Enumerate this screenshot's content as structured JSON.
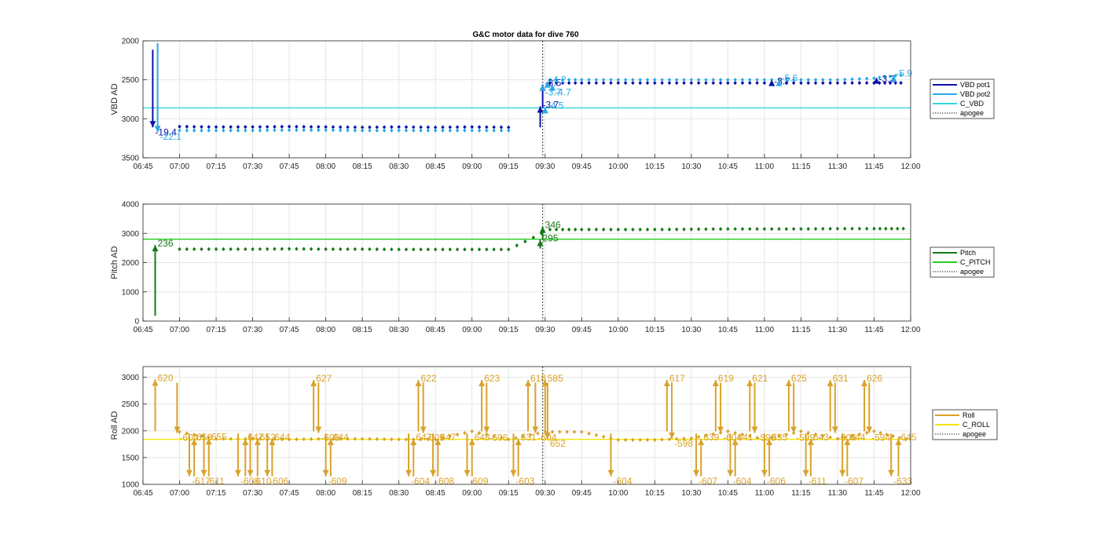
{
  "title": "G&C motor data for dive 760",
  "x_ticks": [
    "06:45",
    "07:00",
    "07:15",
    "07:30",
    "07:45",
    "08:00",
    "08:15",
    "08:30",
    "08:45",
    "09:00",
    "09:15",
    "09:30",
    "09:45",
    "10:00",
    "10:15",
    "10:30",
    "10:45",
    "11:00",
    "11:15",
    "11:30",
    "11:45",
    "12:00"
  ],
  "chart_data": [
    {
      "type": "scatter",
      "ylabel": "VBD AD",
      "reversed_y": true,
      "ylim": [
        2000,
        3500
      ],
      "yticks": [
        2000,
        2500,
        3000,
        3500
      ],
      "grid": true,
      "xlim": [
        "06:45",
        "12:00"
      ],
      "apogee": "09:29",
      "reference_lines": [
        {
          "name": "C_VBD",
          "y": 2860,
          "color": "#33d6dd"
        }
      ],
      "series": [
        {
          "name": "VBD pot1",
          "color": "#0a12a8",
          "x": [
            "07:00",
            "07:15",
            "07:30",
            "07:45",
            "08:00",
            "08:15",
            "08:30",
            "08:45",
            "09:00",
            "09:15",
            "09:32",
            "09:45",
            "10:00",
            "10:15",
            "10:30",
            "10:45",
            "11:00",
            "11:15",
            "11:30",
            "11:45",
            "11:56"
          ],
          "y": [
            3100,
            3105,
            3105,
            3100,
            3105,
            3110,
            3105,
            3110,
            3105,
            3110,
            2540,
            2540,
            2540,
            2540,
            2540,
            2540,
            2540,
            2540,
            2540,
            2540,
            2540
          ]
        },
        {
          "name": "VBD pot2",
          "color": "#2aa8e6",
          "x": [
            "07:00",
            "07:15",
            "07:30",
            "07:45",
            "08:00",
            "08:15",
            "08:30",
            "08:45",
            "09:00",
            "09:15",
            "09:32",
            "09:45",
            "10:00",
            "10:15",
            "10:30",
            "10:45",
            "11:00",
            "11:15",
            "11:30",
            "11:45",
            "11:56"
          ],
          "y": [
            3150,
            3150,
            3150,
            3145,
            3145,
            3150,
            3150,
            3150,
            3150,
            3150,
            2500,
            2500,
            2500,
            2500,
            2500,
            2500,
            2500,
            2500,
            2500,
            2480,
            2440
          ]
        }
      ],
      "moves": [
        {
          "x": "06:49",
          "y0": 2115,
          "y1": 3110,
          "color": "#0a12a8",
          "label": "-19.4"
        },
        {
          "x": "06:51",
          "y0": 2030,
          "y1": 3170,
          "color": "#2aa8e6",
          "label": "-22.1"
        },
        {
          "x": "09:28",
          "y0": 3110,
          "y1": 2840,
          "color": "#0a12a8",
          "label": "-3.7"
        },
        {
          "x": "09:29",
          "y0": 2865,
          "y1": 2560,
          "color": "#0a12a8",
          "label": "-3.5"
        },
        {
          "x": "09:30",
          "y0": 2880,
          "y1": 2850,
          "color": "#2aa8e6",
          "label": "-4.5"
        },
        {
          "x": "09:31",
          "y0": 2600,
          "y1": 2520,
          "color": "#2aa8e6",
          "label": "-4.2"
        },
        {
          "x": "09:29",
          "y0": 2600,
          "y1": 2600,
          "color": "#2aa8e6",
          "label": "-3.7"
        },
        {
          "x": "09:33",
          "y0": 2600,
          "y1": 2600,
          "color": "#2aa8e6",
          "label": "-4.7"
        },
        {
          "x": "11:03",
          "y0": 2560,
          "y1": 2540,
          "color": "#0a12a8",
          "label": "-3.7"
        },
        {
          "x": "11:06",
          "y0": 2560,
          "y1": 2500,
          "color": "#2aa8e6",
          "label": "-5.6"
        },
        {
          "x": "11:46",
          "y0": 2530,
          "y1": 2510,
          "color": "#0a12a8",
          "label": "-3.3"
        },
        {
          "x": "11:53",
          "y0": 2470,
          "y1": 2440,
          "color": "#2aa8e6",
          "label": "-5.9"
        }
      ]
    },
    {
      "type": "scatter",
      "ylabel": "Pitch AD",
      "reversed_y": false,
      "ylim": [
        0,
        4000
      ],
      "yticks": [
        0,
        1000,
        2000,
        3000,
        4000
      ],
      "grid": true,
      "xlim": [
        "06:45",
        "12:00"
      ],
      "apogee": "09:29",
      "reference_lines": [
        {
          "name": "C_PITCH",
          "y": 2800,
          "color": "#22cc22"
        }
      ],
      "series": [
        {
          "name": "Pitch",
          "color": "#157a15",
          "x": [
            "07:00",
            "07:15",
            "07:30",
            "07:45",
            "08:00",
            "08:15",
            "08:30",
            "08:45",
            "09:00",
            "09:15",
            "09:32",
            "09:45",
            "10:00",
            "10:15",
            "10:30",
            "10:45",
            "11:00",
            "11:15",
            "11:30",
            "11:45",
            "11:57"
          ],
          "y": [
            2460,
            2460,
            2460,
            2470,
            2460,
            2460,
            2450,
            2450,
            2450,
            2450,
            3130,
            3130,
            3130,
            3130,
            3140,
            3150,
            3150,
            3150,
            3160,
            3160,
            3160
          ]
        }
      ],
      "moves": [
        {
          "x": "06:50",
          "y0": 180,
          "y1": 2600,
          "color": "#157a15",
          "label": "236"
        },
        {
          "x": "09:28",
          "y0": 2480,
          "y1": 2780,
          "color": "#157a15",
          "label": "295"
        },
        {
          "x": "09:29",
          "y0": 2800,
          "y1": 3230,
          "color": "#157a15",
          "label": "346"
        }
      ]
    },
    {
      "type": "scatter",
      "ylabel": "Roll AD",
      "reversed_y": false,
      "ylim": [
        1000,
        3200
      ],
      "yticks": [
        1000,
        1500,
        2000,
        2500,
        3000
      ],
      "grid": true,
      "xlim": [
        "06:45",
        "12:00"
      ],
      "apogee": "09:29",
      "reference_lines": [
        {
          "name": "C_ROLL",
          "y": 1840,
          "color": "#f2e60c"
        }
      ],
      "series": [
        {
          "name": "Roll",
          "color": "#d9a22a",
          "x": [
            "07:00",
            "07:15",
            "07:30",
            "07:45",
            "08:00",
            "08:15",
            "08:30",
            "08:45",
            "09:00",
            "09:15",
            "09:30",
            "09:45",
            "10:00",
            "10:15",
            "10:30",
            "10:45",
            "11:00",
            "11:15",
            "11:30",
            "11:45",
            "11:58"
          ],
          "y": [
            1980,
            1850,
            1850,
            1840,
            1850,
            1850,
            1840,
            1840,
            1990,
            1840,
            1980,
            1980,
            1830,
            1830,
            1860,
            1990,
            1840,
            1990,
            1850,
            1990,
            1840
          ]
        }
      ],
      "moves": [
        {
          "x": "06:50",
          "y0": 1990,
          "y1": 2960,
          "label": "620"
        },
        {
          "x": "06:59",
          "y0": 2900,
          "y1": 1960,
          "label": "-604"
        },
        {
          "x": "07:04",
          "y0": 1950,
          "y1": 1150,
          "label": "-617"
        },
        {
          "x": "07:06",
          "y0": 1150,
          "y1": 1850,
          "label": "650"
        },
        {
          "x": "07:10",
          "y0": 1950,
          "y1": 1150,
          "label": "-611"
        },
        {
          "x": "07:12",
          "y0": 1150,
          "y1": 1860,
          "label": "655"
        },
        {
          "x": "07:24",
          "y0": 1950,
          "y1": 1150,
          "label": "-608"
        },
        {
          "x": "07:27",
          "y0": 1150,
          "y1": 1850,
          "label": "647"
        },
        {
          "x": "07:29",
          "y0": 1950,
          "y1": 1150,
          "label": "-610"
        },
        {
          "x": "07:32",
          "y0": 1150,
          "y1": 1850,
          "label": "652"
        },
        {
          "x": "07:36",
          "y0": 1950,
          "y1": 1150,
          "label": "-606"
        },
        {
          "x": "07:38",
          "y0": 1150,
          "y1": 1850,
          "label": "644"
        },
        {
          "x": "07:55",
          "y0": 1990,
          "y1": 2950,
          "label": "627"
        },
        {
          "x": "07:57",
          "y0": 2900,
          "y1": 1960,
          "label": "-608"
        },
        {
          "x": "08:00",
          "y0": 1950,
          "y1": 1150,
          "label": "-609"
        },
        {
          "x": "08:02",
          "y0": 1150,
          "y1": 1850,
          "label": "644"
        },
        {
          "x": "08:34",
          "y0": 1950,
          "y1": 1150,
          "label": "-604"
        },
        {
          "x": "08:36",
          "y0": 1150,
          "y1": 1850,
          "label": "647"
        },
        {
          "x": "08:38",
          "y0": 1990,
          "y1": 2950,
          "label": "622"
        },
        {
          "x": "08:40",
          "y0": 2900,
          "y1": 1960,
          "label": "-609"
        },
        {
          "x": "08:44",
          "y0": 1950,
          "y1": 1150,
          "label": "-608"
        },
        {
          "x": "08:46",
          "y0": 1150,
          "y1": 1850,
          "label": "647"
        },
        {
          "x": "08:58",
          "y0": 1950,
          "y1": 1150,
          "label": "-609"
        },
        {
          "x": "09:00",
          "y0": 1150,
          "y1": 1850,
          "label": "648"
        },
        {
          "x": "09:04",
          "y0": 1990,
          "y1": 2950,
          "label": "623"
        },
        {
          "x": "09:06",
          "y0": 2900,
          "y1": 1960,
          "label": "-606"
        },
        {
          "x": "09:17",
          "y0": 1950,
          "y1": 1150,
          "label": "-603"
        },
        {
          "x": "09:19",
          "y0": 1150,
          "y1": 1850,
          "label": "631"
        },
        {
          "x": "09:23",
          "y0": 1990,
          "y1": 2950,
          "label": "618"
        },
        {
          "x": "09:26",
          "y0": 2900,
          "y1": 1960,
          "label": "-604"
        },
        {
          "x": "09:30",
          "y0": 1990,
          "y1": 2950,
          "label": "585"
        },
        {
          "x": "09:31",
          "y0": 2900,
          "y1": 1850,
          "label": "652"
        },
        {
          "x": "09:57",
          "y0": 1950,
          "y1": 1150,
          "label": "-604"
        },
        {
          "x": "10:20",
          "y0": 1990,
          "y1": 2950,
          "label": "617"
        },
        {
          "x": "10:22",
          "y0": 2900,
          "y1": 1850,
          "label": "-598"
        },
        {
          "x": "10:32",
          "y0": 1950,
          "y1": 1150,
          "label": "-607"
        },
        {
          "x": "10:34",
          "y0": 1150,
          "y1": 1850,
          "label": "639"
        },
        {
          "x": "10:40",
          "y0": 1990,
          "y1": 2950,
          "label": "619"
        },
        {
          "x": "10:42",
          "y0": 2900,
          "y1": 1960,
          "label": "-604"
        },
        {
          "x": "10:46",
          "y0": 1950,
          "y1": 1150,
          "label": "-604"
        },
        {
          "x": "10:48",
          "y0": 1150,
          "y1": 1850,
          "label": "641"
        },
        {
          "x": "10:54",
          "y0": 1990,
          "y1": 2950,
          "label": "621"
        },
        {
          "x": "10:56",
          "y0": 2900,
          "y1": 1960,
          "label": "-598"
        },
        {
          "x": "11:00",
          "y0": 1950,
          "y1": 1150,
          "label": "-606"
        },
        {
          "x": "11:02",
          "y0": 1150,
          "y1": 1850,
          "label": "635"
        },
        {
          "x": "11:10",
          "y0": 1990,
          "y1": 2950,
          "label": "625"
        },
        {
          "x": "11:12",
          "y0": 2900,
          "y1": 1960,
          "label": "-599"
        },
        {
          "x": "11:17",
          "y0": 1950,
          "y1": 1150,
          "label": "-611"
        },
        {
          "x": "11:19",
          "y0": 1150,
          "y1": 1850,
          "label": "643"
        },
        {
          "x": "11:27",
          "y0": 1990,
          "y1": 2950,
          "label": "631"
        },
        {
          "x": "11:29",
          "y0": 2900,
          "y1": 1960,
          "label": "-604"
        },
        {
          "x": "11:32",
          "y0": 1950,
          "y1": 1150,
          "label": "-607"
        },
        {
          "x": "11:34",
          "y0": 1150,
          "y1": 1850,
          "label": "644"
        },
        {
          "x": "11:41",
          "y0": 1990,
          "y1": 2950,
          "label": "626"
        },
        {
          "x": "11:43",
          "y0": 2900,
          "y1": 1960,
          "label": "-594"
        },
        {
          "x": "11:52",
          "y0": 1950,
          "y1": 1150,
          "label": "-633"
        },
        {
          "x": "11:55",
          "y0": 1150,
          "y1": 1850,
          "label": "645"
        }
      ]
    }
  ],
  "legends": [
    [
      {
        "name": "VBD pot1",
        "color": "#0a12a8",
        "style": "solid"
      },
      {
        "name": "VBD pot2",
        "color": "#2aa8e6",
        "style": "solid"
      },
      {
        "name": "C_VBD",
        "color": "#33d6dd",
        "style": "solid"
      },
      {
        "name": "apogee",
        "color": "#555555",
        "style": "dotted"
      }
    ],
    [
      {
        "name": "Pitch",
        "color": "#157a15",
        "style": "solid"
      },
      {
        "name": "C_PITCH",
        "color": "#22cc22",
        "style": "solid"
      },
      {
        "name": "apogee",
        "color": "#555555",
        "style": "dotted"
      }
    ],
    [
      {
        "name": "Roll",
        "color": "#d9a22a",
        "style": "solid"
      },
      {
        "name": "C_ROLL",
        "color": "#f2e60c",
        "style": "solid"
      },
      {
        "name": "apogee",
        "color": "#555555",
        "style": "dotted"
      }
    ]
  ]
}
